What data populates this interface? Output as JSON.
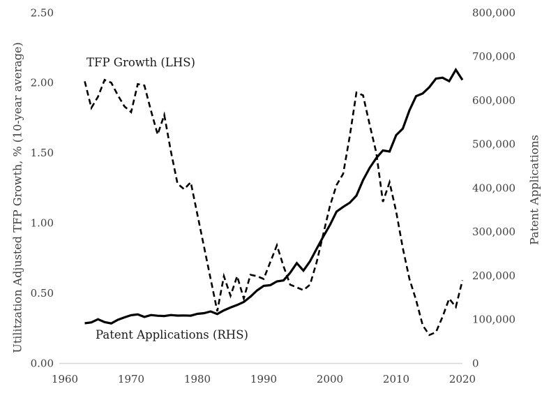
{
  "chart_data": {
    "type": "line",
    "title": "",
    "grid": false,
    "legend_position": "inline-annotations",
    "x_axis": {
      "min": 1960,
      "max": 2020,
      "ticks": [
        1960,
        1970,
        1980,
        1990,
        2000,
        2010,
        2020
      ],
      "tick_labels": [
        "1960",
        "1970",
        "1980",
        "1990",
        "2000",
        "2010",
        "2020"
      ]
    },
    "left_axis": {
      "label": "Utilitzation Adjusted TFP Growth, % (10-year average)",
      "min": 0,
      "max": 2.5,
      "ticks": [
        0,
        0.5,
        1.0,
        1.5,
        2.0,
        2.5
      ],
      "tick_labels": [
        "0.00",
        "0.50",
        "1.00",
        "1.50",
        "2.00",
        "2.50"
      ]
    },
    "right_axis": {
      "label": "Patent Applications",
      "min": 0,
      "max": 800000,
      "ticks": [
        0,
        100000,
        200000,
        300000,
        400000,
        500000,
        600000,
        700000,
        800000
      ],
      "tick_labels": [
        "0",
        "100,000",
        "200,000",
        "300,000",
        "400,000",
        "500,000",
        "600,000",
        "700,000",
        "800,000"
      ]
    },
    "years": [
      1963,
      1964,
      1965,
      1966,
      1967,
      1968,
      1969,
      1970,
      1971,
      1972,
      1973,
      1974,
      1975,
      1976,
      1977,
      1978,
      1979,
      1980,
      1981,
      1982,
      1983,
      1984,
      1985,
      1986,
      1987,
      1988,
      1989,
      1990,
      1991,
      1992,
      1993,
      1994,
      1995,
      1996,
      1997,
      1998,
      1999,
      2000,
      2001,
      2002,
      2003,
      2004,
      2005,
      2006,
      2007,
      2008,
      2009,
      2010,
      2011,
      2012,
      2013,
      2014,
      2015,
      2016,
      2017,
      2018,
      2019,
      2020
    ],
    "series": [
      {
        "name": "TFP Growth (LHS)",
        "annotation": "TFP Growth (LHS)",
        "axis": "left",
        "line_style": "dashed",
        "color": "#000000",
        "values": [
          2.01,
          1.82,
          1.9,
          2.02,
          2.0,
          1.91,
          1.83,
          1.79,
          1.99,
          1.98,
          1.8,
          1.63,
          1.77,
          1.51,
          1.28,
          1.24,
          1.29,
          1.06,
          0.83,
          0.6,
          0.37,
          0.62,
          0.48,
          0.62,
          0.46,
          0.63,
          0.62,
          0.6,
          0.72,
          0.84,
          0.69,
          0.56,
          0.54,
          0.52,
          0.56,
          0.72,
          0.92,
          1.12,
          1.27,
          1.35,
          1.62,
          1.93,
          1.91,
          1.7,
          1.5,
          1.15,
          1.29,
          1.08,
          0.82,
          0.6,
          0.45,
          0.27,
          0.2,
          0.22,
          0.33,
          0.46,
          0.4,
          0.59
        ]
      },
      {
        "name": "Patent Applications (RHS)",
        "annotation": "Patent Applications (RHS)",
        "axis": "right",
        "line_style": "solid",
        "color": "#000000",
        "values": [
          90982,
          92971,
          100150,
          93482,
          90544,
          98737,
          104357,
          109359,
          111095,
          105300,
          109622,
          108011,
          107456,
          109580,
          108377,
          108648,
          108209,
          112379,
          113966,
          117987,
          112040,
          120276,
          126788,
          132665,
          139455,
          151491,
          165748,
          176264,
          177830,
          186507,
          188739,
          206090,
          228238,
          211013,
          232424,
          260889,
          288811,
          315015,
          345732,
          356493,
          366043,
          382139,
          417508,
          445613,
          468077,
          485312,
          482871,
          520277,
          535188,
          576763,
          609052,
          615243,
          629647,
          649319,
          651355,
          643303,
          669434,
          646244
        ]
      }
    ]
  },
  "colors": {
    "background": "#ffffff",
    "axis_line": "#d6d6d6",
    "tick_text": "#404040",
    "annotation_text": "#1a1a1a",
    "series_color": "#000000"
  }
}
